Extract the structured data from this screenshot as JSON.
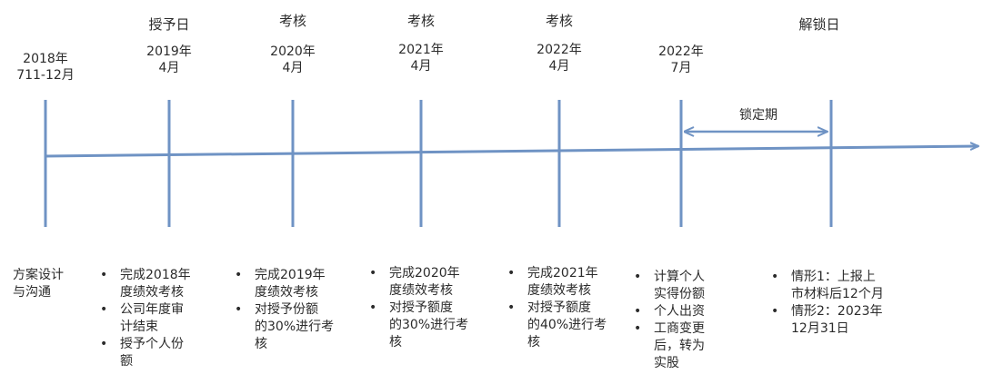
{
  "colors": {
    "timeline": "#6f93c4",
    "text": "#2b2b2b"
  },
  "milestones": [
    {
      "top_label": "",
      "date_line1": "2018年",
      "date_line2": "7​11-12月"
    },
    {
      "top_label": "授予日",
      "date_line1": "2019年",
      "date_line2": "4月"
    },
    {
      "top_label": "考核",
      "date_line1": "2020年",
      "date_line2": "4月"
    },
    {
      "top_label": "考核",
      "date_line1": "2021年",
      "date_line2": "4月"
    },
    {
      "top_label": "考核",
      "date_line1": "2022年",
      "date_line2": "4月"
    },
    {
      "top_label": "",
      "date_line1": "2022年",
      "date_line2": "7月"
    },
    {
      "top_label": "解锁日",
      "date_line1": "",
      "date_line2": ""
    }
  ],
  "lock_period": {
    "label": "锁定期"
  },
  "descriptions": [
    {
      "plain": [
        "方案设计",
        "与沟通"
      ]
    },
    {
      "bullets": [
        [
          "完成2018年",
          "度绩效考核"
        ],
        [
          "公司年度审",
          "计结束"
        ],
        [
          "授予个人份",
          "额"
        ]
      ]
    },
    {
      "bullets": [
        [
          "完成2019年",
          "度绩效考核"
        ],
        [
          "对授予份额",
          "的30%进行考",
          "核"
        ]
      ]
    },
    {
      "bullets": [
        [
          "完成2020年",
          "度绩效考核"
        ],
        [
          "对授予额度",
          "的30%进行考",
          "核"
        ]
      ]
    },
    {
      "bullets": [
        [
          "完成2021年",
          "度绩效考核"
        ],
        [
          "对授予额度",
          "的40%进行考",
          "核"
        ]
      ]
    },
    {
      "bullets": [
        [
          "计算个人",
          "实得份额"
        ],
        [
          "个人出资"
        ],
        [
          "工商变更",
          "后，转为",
          "实股"
        ]
      ]
    },
    {
      "bullets": [
        [
          "情形1：上报上",
          "市材料后12个月"
        ],
        [
          "情形2：2023年",
          "12月31日"
        ]
      ]
    }
  ]
}
